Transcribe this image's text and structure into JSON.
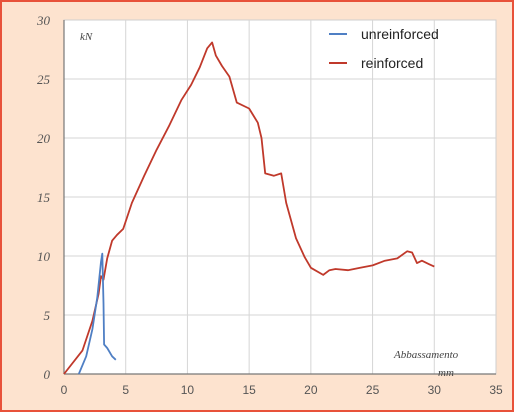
{
  "chart_data": {
    "type": "line",
    "ylabel": "kN",
    "xlabel": "Abbassamento",
    "xunit": "mm",
    "xlim": [
      0,
      35
    ],
    "ylim": [
      0,
      30
    ],
    "xticks": [
      "0",
      "5",
      "10",
      "15",
      "20",
      "25",
      "30",
      "35"
    ],
    "yticks": [
      "0",
      "5",
      "10",
      "15",
      "20",
      "25",
      "30"
    ],
    "grid": true,
    "legend_position": "top-right",
    "series": [
      {
        "name": "unreinforced",
        "color": "#4f7fc4",
        "points": [
          [
            1.2,
            0
          ],
          [
            1.8,
            1.5
          ],
          [
            2.3,
            3.8
          ],
          [
            2.7,
            6.5
          ],
          [
            3.0,
            9.5
          ],
          [
            3.1,
            10.2
          ],
          [
            3.2,
            6.0
          ],
          [
            3.25,
            2.5
          ],
          [
            3.5,
            2.2
          ],
          [
            3.9,
            1.5
          ],
          [
            4.2,
            1.2
          ]
        ]
      },
      {
        "name": "reinforced",
        "color": "#c0392b",
        "points": [
          [
            0,
            0
          ],
          [
            1.5,
            2.0
          ],
          [
            2.3,
            4.5
          ],
          [
            2.8,
            6.8
          ],
          [
            3.0,
            8.3
          ],
          [
            3.2,
            8.0
          ],
          [
            3.5,
            9.8
          ],
          [
            3.9,
            11.3
          ],
          [
            4.3,
            11.8
          ],
          [
            4.8,
            12.3
          ],
          [
            5.5,
            14.5
          ],
          [
            6.5,
            16.8
          ],
          [
            7.5,
            19.0
          ],
          [
            8.5,
            21.0
          ],
          [
            9.5,
            23.2
          ],
          [
            10.3,
            24.5
          ],
          [
            11.0,
            26.0
          ],
          [
            11.6,
            27.6
          ],
          [
            12.0,
            28.1
          ],
          [
            12.3,
            27.0
          ],
          [
            12.8,
            26.1
          ],
          [
            13.4,
            25.2
          ],
          [
            14.0,
            23.0
          ],
          [
            15.0,
            22.5
          ],
          [
            15.7,
            21.3
          ],
          [
            16.0,
            20.0
          ],
          [
            16.3,
            17.0
          ],
          [
            17.0,
            16.8
          ],
          [
            17.6,
            17.0
          ],
          [
            18.0,
            14.5
          ],
          [
            18.8,
            11.5
          ],
          [
            19.5,
            9.9
          ],
          [
            20.0,
            9.0
          ],
          [
            21.0,
            8.4
          ],
          [
            21.5,
            8.8
          ],
          [
            22.0,
            8.9
          ],
          [
            23.0,
            8.8
          ],
          [
            24.0,
            9.0
          ],
          [
            25.0,
            9.2
          ],
          [
            26.0,
            9.6
          ],
          [
            27.0,
            9.8
          ],
          [
            27.8,
            10.4
          ],
          [
            28.2,
            10.3
          ],
          [
            28.6,
            9.4
          ],
          [
            29.0,
            9.6
          ],
          [
            29.6,
            9.3
          ],
          [
            30.0,
            9.1
          ]
        ]
      }
    ]
  }
}
